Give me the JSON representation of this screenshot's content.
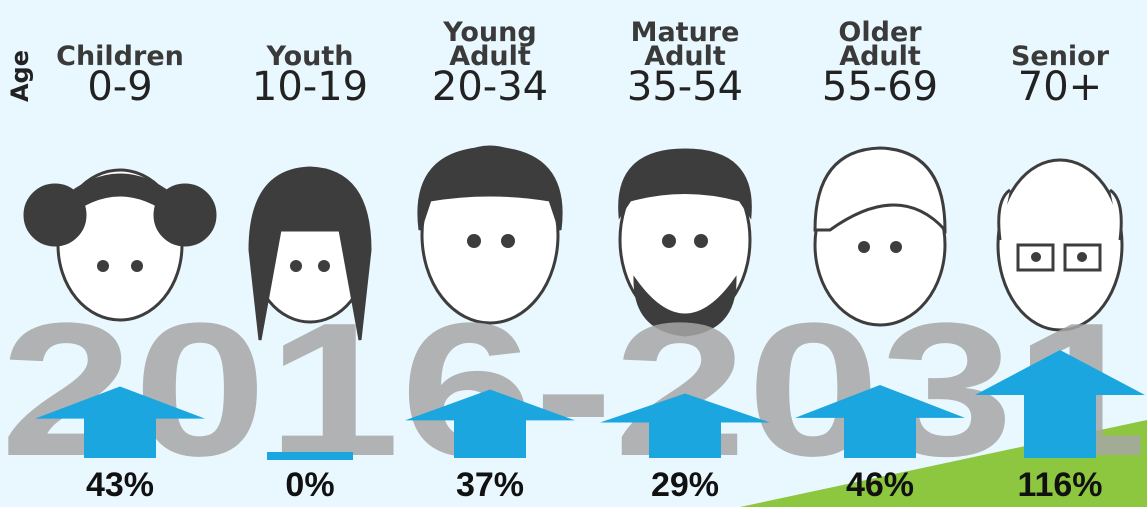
{
  "chart_data": {
    "type": "arrow",
    "title": "2016-2031",
    "axis_label": "Age",
    "categories": [
      "Children",
      "Youth",
      "Young Adult",
      "Mature Adult",
      "Older Adult",
      "Senior"
    ],
    "age_ranges": [
      "0-9",
      "10-19",
      "20-34",
      "35-54",
      "55-69",
      "70+"
    ],
    "values": [
      43,
      0,
      37,
      29,
      46,
      116
    ],
    "value_labels": [
      "43%",
      "0%",
      "37%",
      "29%",
      "46%",
      "116%"
    ],
    "color": "#1ba6e0"
  }
}
